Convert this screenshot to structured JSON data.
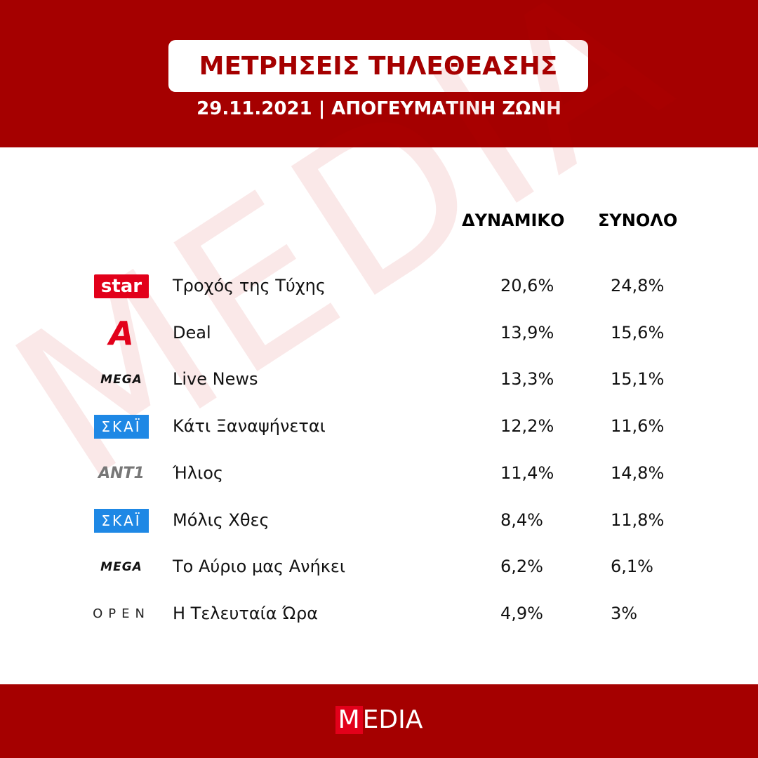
{
  "header": {
    "title": "ΜΕΤΡΗΣΕΙΣ ΤΗΛΕΘΕΑΣΗΣ",
    "subtitle": "29.11.2021 | ΑΠΟΓΕΥΜΑΤΙΝΗ ΖΩΝΗ"
  },
  "table": {
    "columns": [
      "ΔΥΝΑΜΙΚΟ",
      "ΣΥΝΟΛΟ"
    ],
    "rows": [
      {
        "channel": "star",
        "show": "Τροχός της Τύχης",
        "values": [
          "20,6%",
          "24,8%"
        ]
      },
      {
        "channel": "Α",
        "show": "Deal",
        "values": [
          "13,9%",
          "15,6%"
        ]
      },
      {
        "channel": "MEGA",
        "show": "Live News",
        "values": [
          "13,3%",
          "15,1%"
        ]
      },
      {
        "channel": "ΣΚΑΪ",
        "show": "Κάτι Ξαναψήνεται",
        "values": [
          "12,2%",
          "11,6%"
        ]
      },
      {
        "channel": "ANT1",
        "show": "Ήλιος",
        "values": [
          "11,4%",
          "14,8%"
        ]
      },
      {
        "channel": "ΣΚΑΪ",
        "show": "Μόλις Χθες",
        "values": [
          "8,4%",
          "11,8%"
        ]
      },
      {
        "channel": "MEGA",
        "show": "Το Αύριο μας Ανήκει",
        "values": [
          "6,2%",
          "6,1%"
        ]
      },
      {
        "channel": "OPEN",
        "show": "Η Τελευταία Ώρα",
        "values": [
          "4,9%",
          "3%"
        ]
      }
    ]
  },
  "watermark": "MEDIA",
  "footer": {
    "mark": "M",
    "rest": "EDIA"
  }
}
